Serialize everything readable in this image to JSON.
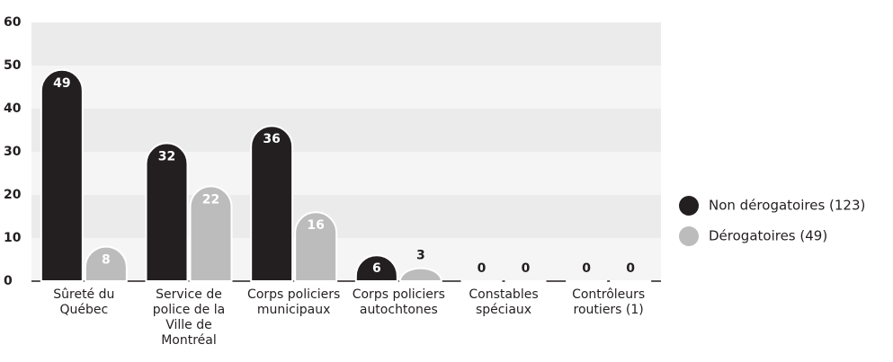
{
  "chart_data": {
    "type": "bar",
    "categories": [
      "Sûreté du Québec",
      "Service de police de la Ville de Montréal",
      "Corps policiers municipaux",
      "Corps policiers autochtones",
      "Constables spéciaux",
      "Contrôleurs routiers (1)"
    ],
    "series": [
      {
        "name": "Non dérogatoires (123)",
        "color": "#231f20",
        "values": [
          49,
          32,
          36,
          6,
          0,
          0
        ]
      },
      {
        "name": "Dérogatoires (49)",
        "color": "#bcbcbd",
        "values": [
          8,
          22,
          16,
          3,
          0,
          0
        ]
      }
    ],
    "ylim": [
      0,
      60
    ],
    "yticks": [
      0,
      10,
      20,
      30,
      40,
      50,
      60
    ],
    "grid": true,
    "legend": "right"
  }
}
